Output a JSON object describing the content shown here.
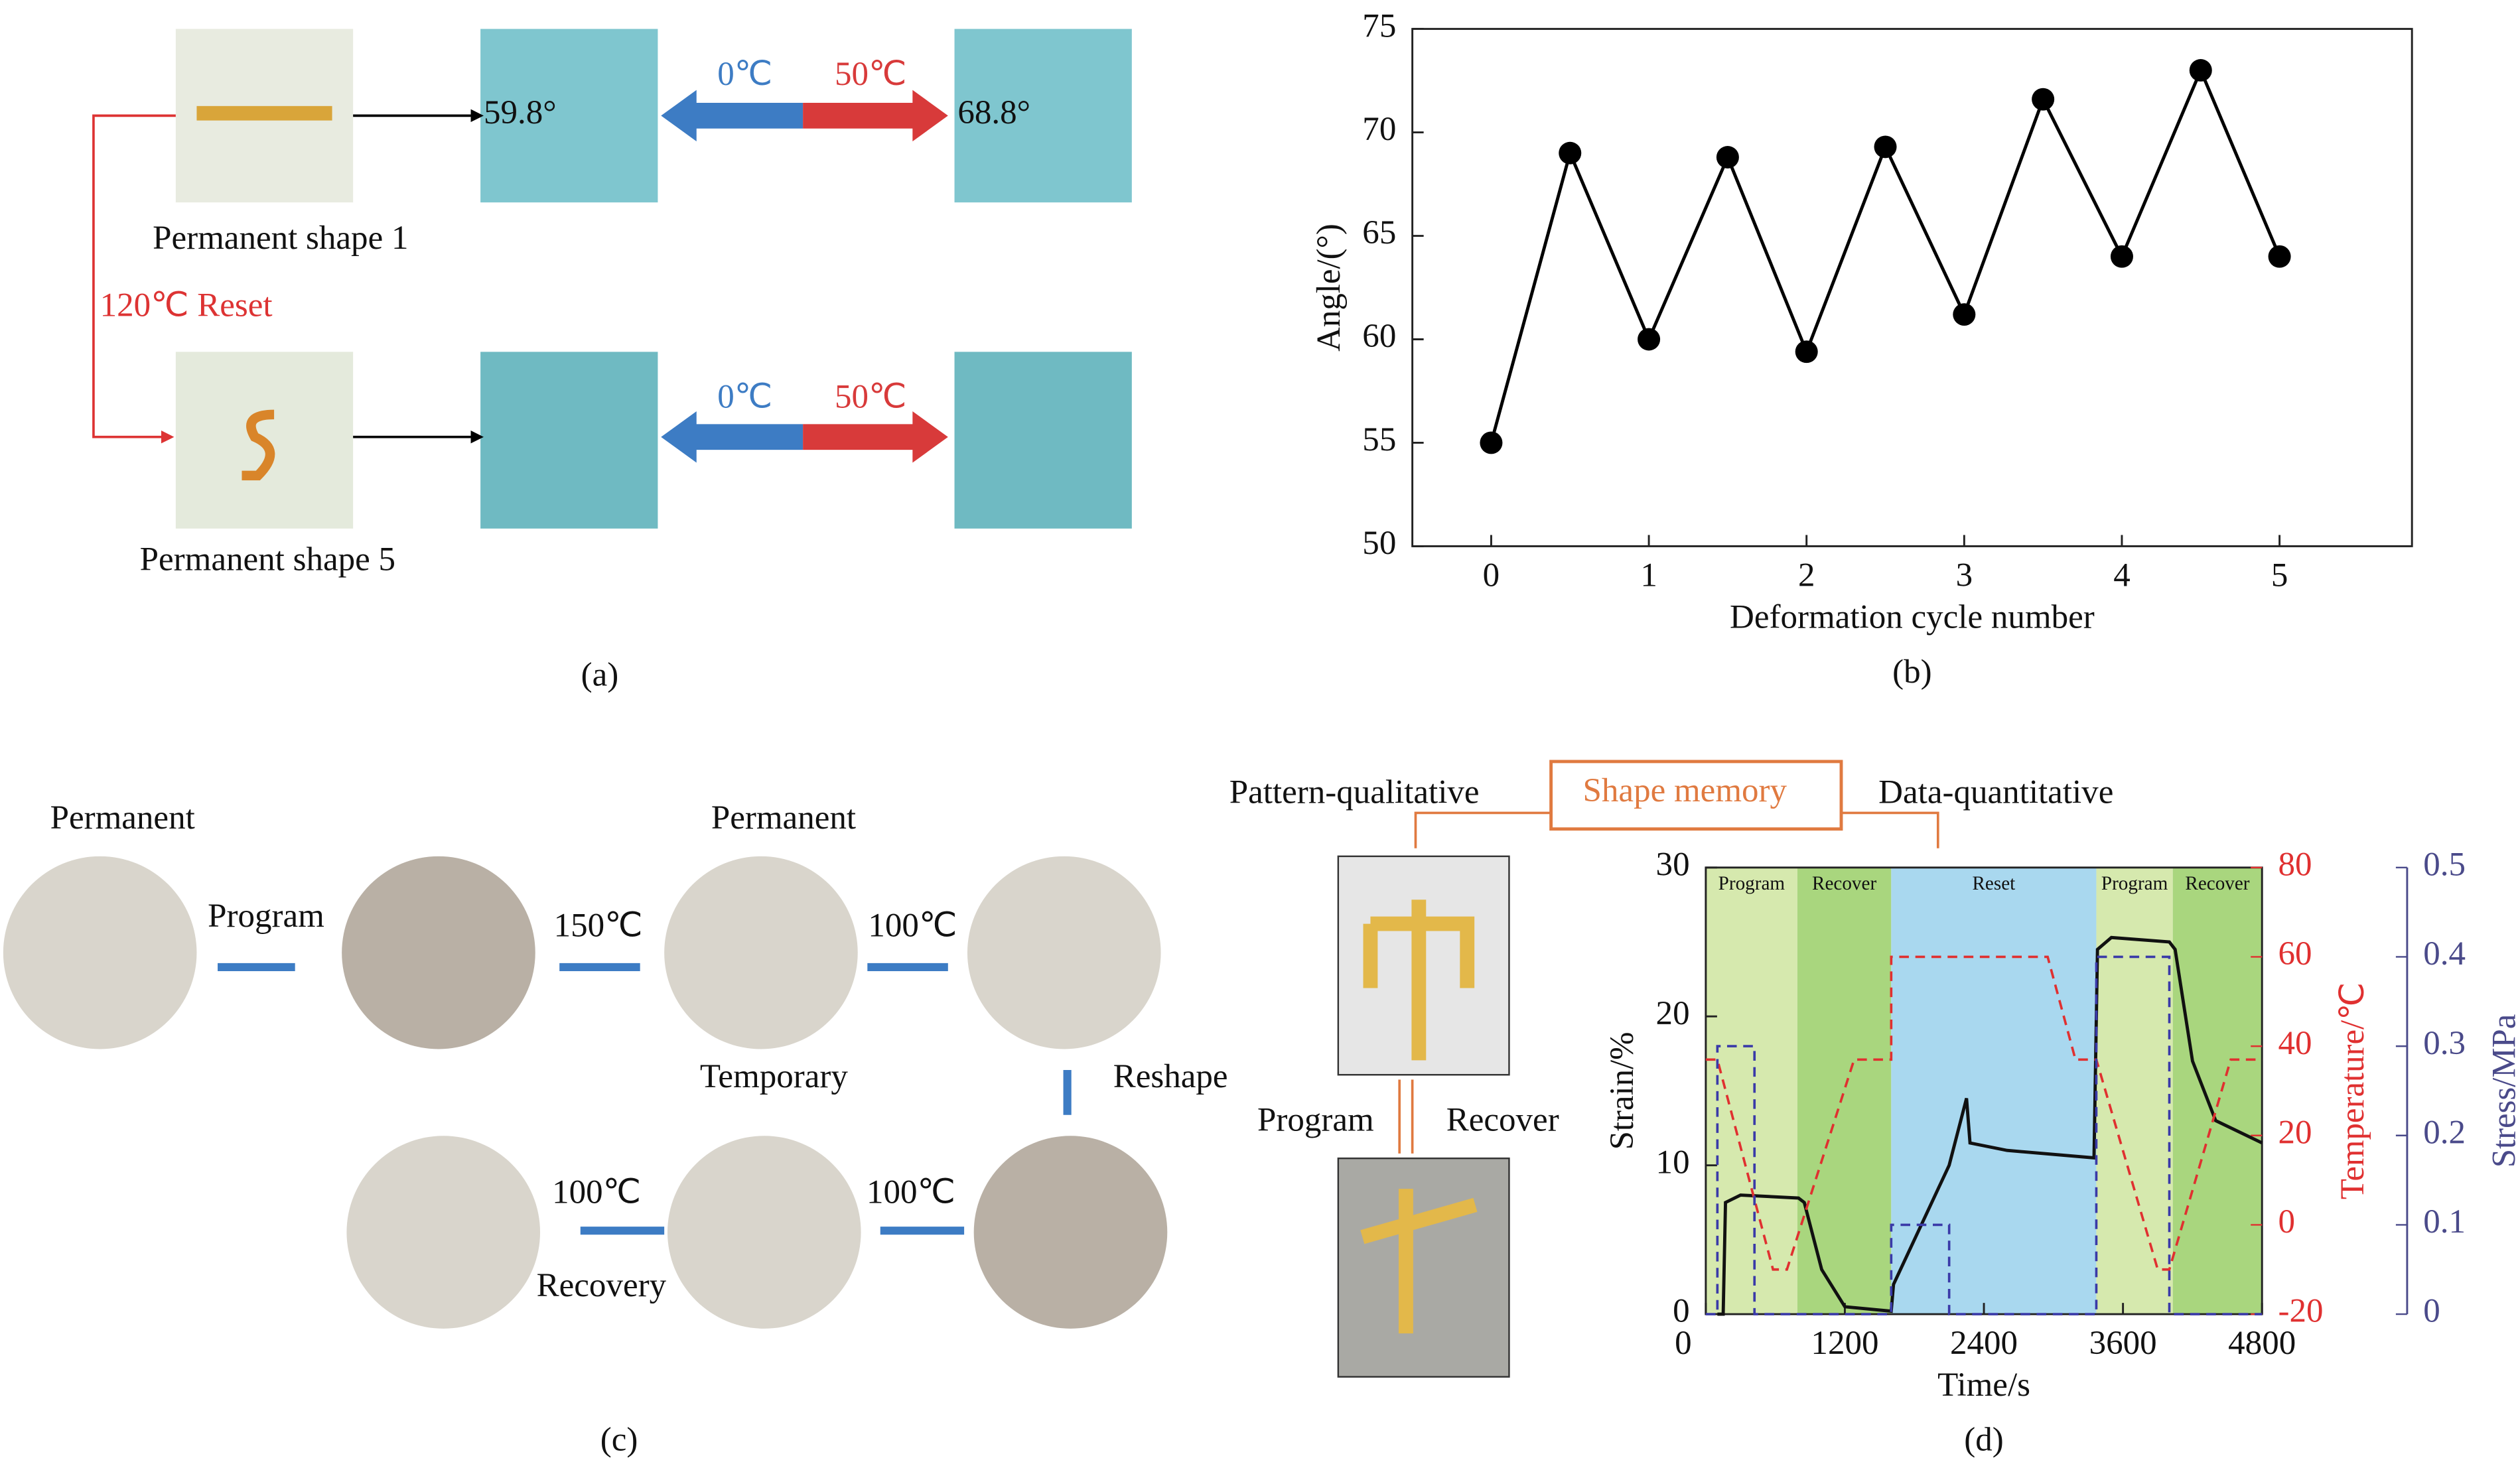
{
  "chart_data": [
    {
      "type": "line",
      "x": [
        0,
        0.5,
        1,
        1.5,
        2,
        2.5,
        3,
        3.5,
        4,
        4.5,
        5
      ],
      "values": [
        55,
        69,
        60,
        68.8,
        59.4,
        69.3,
        61.2,
        71.6,
        64,
        73,
        64
      ],
      "color": "#000000",
      "xlim": [
        -0.5,
        5.84
      ],
      "ylim": [
        50,
        75
      ],
      "xticks": [
        0,
        1,
        2,
        3,
        4,
        5
      ],
      "yticks": [
        50,
        55,
        60,
        65,
        70,
        75
      ],
      "xlabel": "Deformation cycle number",
      "ylabel": "Angle/(°)",
      "label": "(b)"
    },
    {
      "type": "line",
      "xlim": [
        0,
        4800
      ],
      "xticks": [
        0,
        1200,
        2400,
        3600,
        4800
      ],
      "ylim": [
        0,
        30
      ],
      "yticks": [
        0,
        10,
        20,
        30
      ],
      "y2lim": [
        -20,
        80
      ],
      "y2ticks": [
        -20,
        0,
        20,
        40,
        60,
        80
      ],
      "y3lim": [
        0,
        0.5
      ],
      "y3ticks": [
        0,
        0.1,
        0.2,
        0.3,
        0.4,
        0.5
      ],
      "xlabel": "Time/s",
      "ylabel": "Strain/%",
      "y2label": "Temperature/℃",
      "y3label": "Stress/MPa",
      "label": "(d)",
      "phases": [
        {
          "label": "Program",
          "start": 0,
          "end": 790,
          "color": "#d6e9ae"
        },
        {
          "label": "Recover",
          "start": 790,
          "end": 1600,
          "color": "#a9d67e"
        },
        {
          "label": "Reset",
          "start": 1600,
          "end": 3370,
          "color": "#a9d8ef"
        },
        {
          "label": "Program",
          "start": 3370,
          "end": 4030,
          "color": "#d6e9ae"
        },
        {
          "label": "Recover",
          "start": 4030,
          "end": 4800,
          "color": "#a9d67e"
        }
      ],
      "series": [
        {
          "color": "#111111",
          "dash": false,
          "axis": "y",
          "x": [
            100,
            150,
            170,
            300,
            800,
            850,
            1000,
            1200,
            1600,
            1620,
            2100,
            2250,
            2280,
            2600,
            3350,
            3380,
            3500,
            4000,
            4050,
            4200,
            4400,
            4800
          ],
          "values": [
            0,
            0,
            7.5,
            8,
            7.8,
            7.5,
            3,
            0.5,
            0.2,
            2,
            10,
            14.5,
            11.5,
            11,
            10.5,
            24.5,
            25.3,
            25,
            24.5,
            17,
            13,
            11.5
          ]
        },
        {
          "color": "#e03030",
          "dash": true,
          "axis": "y2",
          "x": [
            0,
            100,
            580,
            700,
            1280,
            1600,
            1600,
            2950,
            3190,
            3370,
            3900,
            4000,
            4530,
            4800
          ],
          "values": [
            37,
            37,
            -10,
            -10,
            37,
            37,
            60,
            60,
            37,
            37,
            -10,
            -10,
            37,
            37
          ]
        },
        {
          "color": "#3a3aa8",
          "dash": true,
          "axis": "y3",
          "x": [
            0,
            100,
            100,
            420,
            420,
            1600,
            1600,
            2100,
            2100,
            3370,
            3370,
            4000,
            4000,
            4800
          ],
          "values": [
            0,
            0,
            0.3,
            0.3,
            0,
            0,
            0.1,
            0.1,
            0,
            0,
            0.4,
            0.4,
            0,
            0
          ]
        }
      ]
    }
  ],
  "panel_a": {
    "angle_left": "59.8°",
    "angle_right": "68.8°",
    "cold": "0℃",
    "hot": "50℃",
    "cold_2": "0℃",
    "hot_2": "50℃",
    "shape_1": "Permanent shape 1",
    "reset": "120℃ Reset",
    "shape_5": "Permanent shape 5",
    "label": "(a)"
  },
  "panel_c": {
    "permanent": "Permanent",
    "program": "Program",
    "t150": "150℃",
    "permanent_2": "Permanent",
    "t100a": "100℃",
    "temporary": "Temporary",
    "reshape": "Reshape",
    "t100b": "100℃",
    "t100c": "100℃",
    "recovery": "Recovery",
    "label": "(c)"
  },
  "panel_d_diagram": {
    "left": "Pattern-qualitative",
    "center": "Shape memory",
    "right": "Data-quantitative",
    "program": "Program",
    "recover": "Recover"
  }
}
